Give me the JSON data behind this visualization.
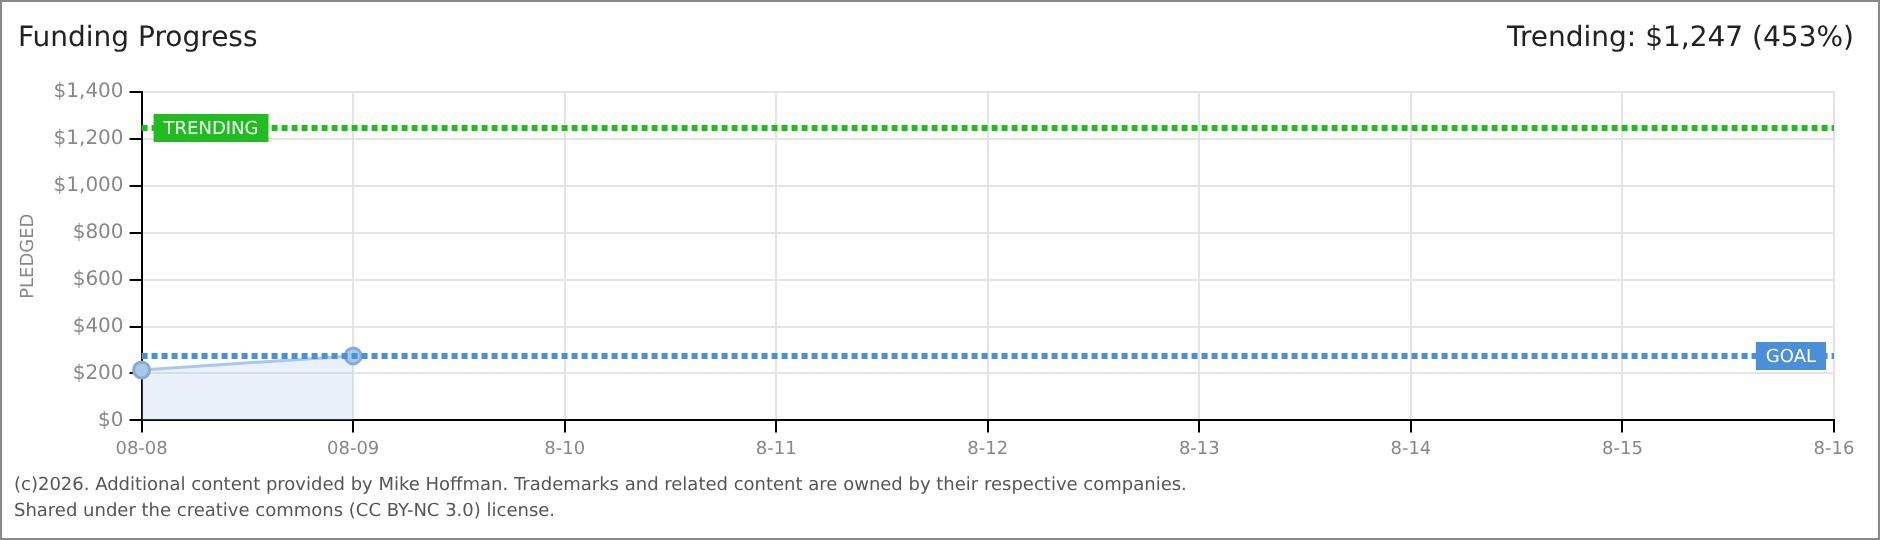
{
  "chart_data": {
    "type": "area",
    "title": "Funding Progress",
    "subtitle": "Trending: $1,247 (453%)",
    "ylabel": "PLEDGED",
    "categories": [
      "08-08",
      "08-09",
      "8-10",
      "8-11",
      "8-12",
      "8-13",
      "8-14",
      "8-15",
      "8-16"
    ],
    "series": [
      {
        "color": "#a8c8ec",
        "values": [
          215,
          275,
          null,
          null,
          null,
          null,
          null,
          null,
          null
        ]
      }
    ],
    "ylim": [
      0,
      1400
    ],
    "yticks": [
      {
        "value": 0,
        "label": "$0"
      },
      {
        "value": 200,
        "label": "$200"
      },
      {
        "value": 400,
        "label": "$400"
      },
      {
        "value": 600,
        "label": "$600"
      },
      {
        "value": 800,
        "label": "$800"
      },
      {
        "value": 1000,
        "label": "$1,000"
      },
      {
        "value": 1200,
        "label": "$1,200"
      },
      {
        "value": 1400,
        "label": "$1,400"
      }
    ],
    "ref_lines": [
      {
        "axis": "y",
        "value": 1247,
        "label": "TRENDING",
        "color": "#22bb22",
        "line_style": "dotted"
      },
      {
        "axis": "y",
        "value": 275,
        "label": "GOAL",
        "color": "#4a8fd8",
        "line_style": "dotted"
      }
    ],
    "grid": true,
    "legend": false,
    "marker": "circle",
    "annotations": [
      "(c)2026. Additional content provided by Mike Hoffman. Trademarks and related content are owned by their respective companies.",
      "Shared under the creative commons (CC BY-NC 3.0) license."
    ]
  }
}
